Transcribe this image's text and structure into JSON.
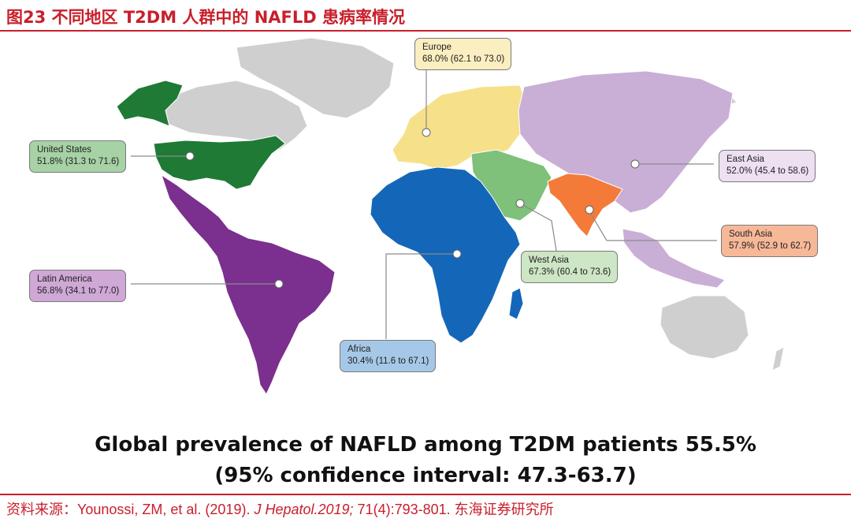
{
  "figure": {
    "title": "图23  不同地区 T2DM 人群中的 NAFLD 患病率情况"
  },
  "regions": [
    {
      "id": "europe",
      "name": "Europe",
      "value": "68.0% (62.1 to 73.0)",
      "color": "#f6e08a",
      "box_color": "#fbeec0"
    },
    {
      "id": "united-states",
      "name": "United States",
      "value": "51.8% (31.3 to 71.6)",
      "color": "#1e7a35",
      "box_color": "#a6d2a6"
    },
    {
      "id": "east-asia",
      "name": "East Asia",
      "value": "52.0% (45.4 to 58.6)",
      "color": "#c9aed6",
      "box_color": "#ece0f1"
    },
    {
      "id": "south-asia",
      "name": "South Asia",
      "value": "57.9% (52.9 to 62.7)",
      "color": "#f47a3a",
      "box_color": "#f7b898"
    },
    {
      "id": "west-asia",
      "name": "West Asia",
      "value": "67.3% (60.4 to 73.6)",
      "color": "#7fc07a",
      "box_color": "#cde6c5"
    },
    {
      "id": "latin-america",
      "name": "Latin America",
      "value": "56.8% (34.1 to 77.0)",
      "color": "#7b2f8e",
      "box_color": "#cfa8d6"
    },
    {
      "id": "africa",
      "name": "Africa",
      "value": "30.4% (11.6 to 67.1)",
      "color": "#1467b8",
      "box_color": "#a6c8e8"
    }
  ],
  "headline": {
    "line1": "Global prevalence of NAFLD among T2DM patients 55.5%",
    "line2": "(95% confidence interval: 47.3-63.7)"
  },
  "source": {
    "prefix": "资料来源：Younossi, ZM, et al. (2019). ",
    "journal": "J Hepatol.2019;",
    "suffix": " 71(4):793-801.  东海证券研究所"
  }
}
